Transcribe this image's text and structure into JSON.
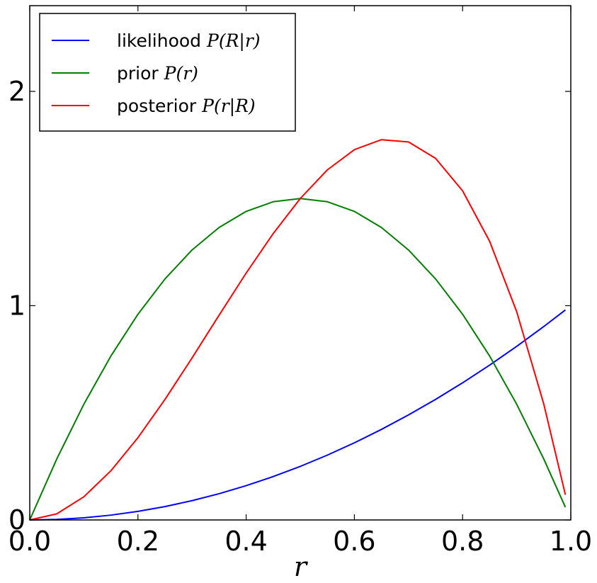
{
  "chart_data": {
    "type": "line",
    "title": "",
    "xlabel": "r",
    "ylabel": "",
    "xlim": [
      0.0,
      1.0
    ],
    "ylim": [
      0.0,
      2.4
    ],
    "x_ticks": [
      "0.0",
      "0.2",
      "0.4",
      "0.6",
      "0.8",
      "1.0"
    ],
    "y_ticks": [
      "0",
      "1",
      "2"
    ],
    "grid": false,
    "legend_position": "top-left",
    "x": [
      0.0,
      0.05,
      0.1,
      0.15,
      0.2,
      0.25,
      0.3,
      0.35,
      0.4,
      0.45,
      0.5,
      0.55,
      0.6,
      0.65,
      0.7,
      0.75,
      0.8,
      0.85,
      0.9,
      0.95,
      0.99
    ],
    "series": [
      {
        "name": "likelihood",
        "name_math": "P(R|r)",
        "color": "#0000ff",
        "values": [
          0.0,
          0.0025,
          0.01,
          0.0225,
          0.04,
          0.0625,
          0.09,
          0.1225,
          0.16,
          0.2025,
          0.25,
          0.3025,
          0.36,
          0.4225,
          0.49,
          0.5625,
          0.64,
          0.7225,
          0.81,
          0.9025,
          0.9801
        ]
      },
      {
        "name": "prior",
        "name_math": "P(r)",
        "color": "#008000",
        "values": [
          0.0,
          0.285,
          0.54,
          0.765,
          0.96,
          1.125,
          1.26,
          1.365,
          1.44,
          1.485,
          1.5,
          1.485,
          1.44,
          1.365,
          1.26,
          1.125,
          0.96,
          0.765,
          0.54,
          0.285,
          0.0594
        ]
      },
      {
        "name": "posterior",
        "name_math": "P(r|R)",
        "color": "#ff0000",
        "values": [
          0.0,
          0.0285,
          0.108,
          0.2295,
          0.384,
          0.5625,
          0.756,
          0.9555,
          1.152,
          1.3365,
          1.5,
          1.6335,
          1.728,
          1.7745,
          1.764,
          1.6875,
          1.536,
          1.3005,
          0.972,
          0.5415,
          0.1176
        ]
      }
    ]
  }
}
